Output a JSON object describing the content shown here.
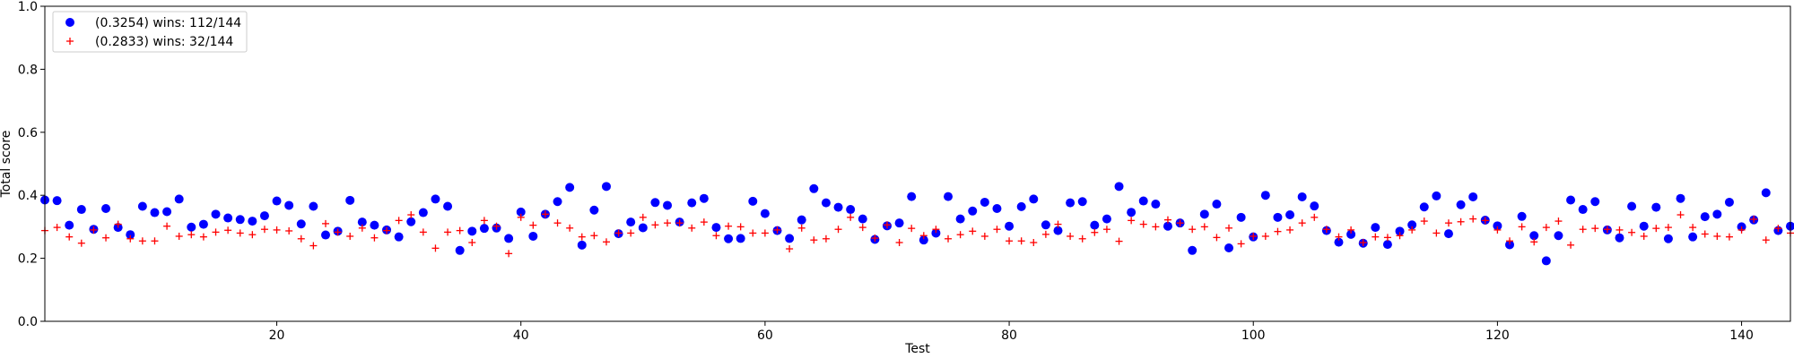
{
  "chart_data": {
    "type": "scatter",
    "xlabel": "Test",
    "ylabel": "Total score",
    "xlim": [
      1,
      144
    ],
    "ylim": [
      0.0,
      1.0
    ],
    "xticks": [
      20,
      40,
      60,
      80,
      100,
      120,
      140
    ],
    "yticks": [
      "0.0",
      "0.2",
      "0.4",
      "0.6",
      "0.8",
      "1.0"
    ],
    "grid": false,
    "legend_position": "top-left",
    "series": [
      {
        "name": "(0.3254) wins: 112/144",
        "marker": "circle",
        "color": "#0000ff",
        "values": [
          0.385,
          0.383,
          0.305,
          0.355,
          0.292,
          0.358,
          0.298,
          0.275,
          0.365,
          0.345,
          0.348,
          0.388,
          0.299,
          0.308,
          0.34,
          0.328,
          0.323,
          0.318,
          0.335,
          0.382,
          0.368,
          0.309,
          0.365,
          0.274,
          0.286,
          0.384,
          0.315,
          0.305,
          0.29,
          0.268,
          0.316,
          0.345,
          0.388,
          0.365,
          0.225,
          0.286,
          0.295,
          0.296,
          0.263,
          0.347,
          0.27,
          0.34,
          0.38,
          0.425,
          0.242,
          0.353,
          0.428,
          0.278,
          0.315,
          0.297,
          0.377,
          0.368,
          0.315,
          0.376,
          0.39,
          0.298,
          0.262,
          0.263,
          0.381,
          0.342,
          0.288,
          0.263,
          0.322,
          0.421,
          0.376,
          0.362,
          0.355,
          0.325,
          0.26,
          0.303,
          0.312,
          0.396,
          0.258,
          0.28,
          0.396,
          0.325,
          0.35,
          0.378,
          0.358,
          0.302,
          0.364,
          0.388,
          0.306,
          0.288,
          0.376,
          0.38,
          0.305,
          0.325,
          0.428,
          0.346,
          0.382,
          0.372,
          0.302,
          0.312,
          0.225,
          0.34,
          0.372,
          0.233,
          0.33,
          0.268,
          0.4,
          0.33,
          0.338,
          0.395,
          0.366,
          0.288,
          0.251,
          0.276,
          0.248,
          0.298,
          0.244,
          0.286,
          0.306,
          0.363,
          0.398,
          0.278,
          0.37,
          0.395,
          0.321,
          0.303,
          0.243,
          0.333,
          0.272,
          0.192,
          0.272,
          0.385,
          0.355,
          0.38,
          0.29,
          0.265,
          0.365,
          0.302,
          0.362,
          0.262,
          0.39,
          0.268,
          0.332,
          0.34,
          0.378,
          0.3,
          0.322,
          0.408,
          0.288,
          0.302
        ]
      },
      {
        "name": "(0.2833) wins: 32/144",
        "marker": "plus",
        "color": "#ff0000",
        "values": [
          0.288,
          0.298,
          0.268,
          0.248,
          0.29,
          0.265,
          0.308,
          0.262,
          0.255,
          0.255,
          0.302,
          0.27,
          0.275,
          0.268,
          0.283,
          0.289,
          0.28,
          0.275,
          0.292,
          0.29,
          0.287,
          0.262,
          0.24,
          0.31,
          0.283,
          0.27,
          0.296,
          0.265,
          0.288,
          0.32,
          0.338,
          0.283,
          0.232,
          0.283,
          0.288,
          0.25,
          0.32,
          0.302,
          0.215,
          0.33,
          0.305,
          0.34,
          0.312,
          0.296,
          0.268,
          0.272,
          0.252,
          0.28,
          0.28,
          0.33,
          0.306,
          0.312,
          0.312,
          0.296,
          0.315,
          0.272,
          0.302,
          0.3,
          0.28,
          0.28,
          0.29,
          0.23,
          0.296,
          0.258,
          0.262,
          0.292,
          0.33,
          0.298,
          0.264,
          0.306,
          0.25,
          0.295,
          0.272,
          0.292,
          0.262,
          0.275,
          0.286,
          0.27,
          0.292,
          0.255,
          0.255,
          0.25,
          0.276,
          0.308,
          0.27,
          0.262,
          0.282,
          0.292,
          0.254,
          0.32,
          0.308,
          0.3,
          0.322,
          0.312,
          0.292,
          0.3,
          0.266,
          0.296,
          0.246,
          0.27,
          0.27,
          0.285,
          0.29,
          0.312,
          0.33,
          0.292,
          0.268,
          0.29,
          0.25,
          0.268,
          0.266,
          0.272,
          0.29,
          0.318,
          0.28,
          0.312,
          0.316,
          0.325,
          0.32,
          0.29,
          0.255,
          0.3,
          0.252,
          0.298,
          0.318,
          0.242,
          0.292,
          0.295,
          0.292,
          0.29,
          0.282,
          0.27,
          0.295,
          0.298,
          0.338,
          0.298,
          0.277,
          0.27,
          0.268,
          0.29,
          0.324,
          0.258,
          0.295,
          0.28
        ]
      }
    ]
  }
}
